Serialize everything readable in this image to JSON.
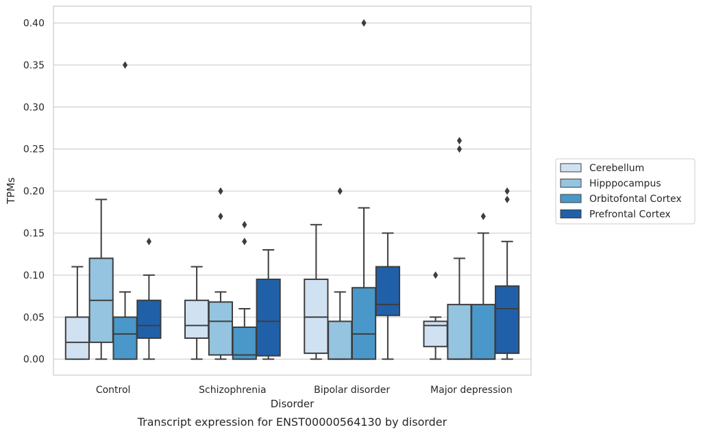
{
  "chart_data": {
    "type": "box",
    "title": "",
    "caption": "Transcript expression for ENST00000564130 by disorder",
    "xlabel": "Disorder",
    "ylabel": "TPMs",
    "ylim": [
      -0.019,
      0.42
    ],
    "yticks": [
      "0.00",
      "0.05",
      "0.10",
      "0.15",
      "0.20",
      "0.25",
      "0.30",
      "0.35",
      "0.40"
    ],
    "ytick_values": [
      0,
      0.05,
      0.1,
      0.15,
      0.2,
      0.25,
      0.3,
      0.35,
      0.4
    ],
    "grid": true,
    "legend_position": "right",
    "categories": [
      "Control",
      "Schizophrenia",
      "Bipolar disorder",
      "Major depression"
    ],
    "series": [
      {
        "name": "Cerebellum",
        "color": "#d0e1f2",
        "boxes": [
          {
            "whislo": 0,
            "q1": 0,
            "med": 0.02,
            "q3": 0.05,
            "whishi": 0.11,
            "fliers": []
          },
          {
            "whislo": 0,
            "q1": 0.025,
            "med": 0.04,
            "q3": 0.07,
            "whishi": 0.11,
            "fliers": []
          },
          {
            "whislo": 0,
            "q1": 0.007,
            "med": 0.05,
            "q3": 0.095,
            "whishi": 0.16,
            "fliers": []
          },
          {
            "whislo": 0,
            "q1": 0.015,
            "med": 0.04,
            "q3": 0.045,
            "whishi": 0.05,
            "fliers": [
              0.1
            ]
          }
        ]
      },
      {
        "name": "Hipppocampus",
        "color": "#94c4df",
        "boxes": [
          {
            "whislo": 0,
            "q1": 0.02,
            "med": 0.07,
            "q3": 0.12,
            "whishi": 0.19,
            "fliers": []
          },
          {
            "whislo": 0,
            "q1": 0.005,
            "med": 0.045,
            "q3": 0.068,
            "whishi": 0.08,
            "fliers": [
              0.17,
              0.2
            ]
          },
          {
            "whislo": 0,
            "q1": 0,
            "med": 0,
            "q3": 0.045,
            "whishi": 0.08,
            "fliers": [
              0.2
            ]
          },
          {
            "whislo": 0,
            "q1": 0,
            "med": 0,
            "q3": 0.065,
            "whishi": 0.12,
            "fliers": [
              0.25,
              0.26
            ]
          }
        ]
      },
      {
        "name": "Orbitofontal Cortex",
        "color": "#4a98c9",
        "boxes": [
          {
            "whislo": 0,
            "q1": 0,
            "med": 0.03,
            "q3": 0.05,
            "whishi": 0.08,
            "fliers": [
              0.35
            ]
          },
          {
            "whislo": 0,
            "q1": 0,
            "med": 0.005,
            "q3": 0.038,
            "whishi": 0.06,
            "fliers": [
              0.14,
              0.16
            ]
          },
          {
            "whislo": 0,
            "q1": 0,
            "med": 0.03,
            "q3": 0.085,
            "whishi": 0.18,
            "fliers": [
              0.4
            ]
          },
          {
            "whislo": 0,
            "q1": 0,
            "med": 0,
            "q3": 0.065,
            "whishi": 0.15,
            "fliers": [
              0.17
            ]
          }
        ]
      },
      {
        "name": "Prefrontal Cortex",
        "color": "#2060a8",
        "boxes": [
          {
            "whislo": 0,
            "q1": 0.025,
            "med": 0.04,
            "q3": 0.07,
            "whishi": 0.1,
            "fliers": [
              0.14
            ]
          },
          {
            "whislo": 0,
            "q1": 0.004,
            "med": 0.045,
            "q3": 0.095,
            "whishi": 0.13,
            "fliers": []
          },
          {
            "whislo": 0,
            "q1": 0.052,
            "med": 0.065,
            "q3": 0.11,
            "whishi": 0.15,
            "fliers": []
          },
          {
            "whislo": 0,
            "q1": 0.007,
            "med": 0.06,
            "q3": 0.087,
            "whishi": 0.14,
            "fliers": [
              0.19,
              0.2
            ]
          }
        ]
      }
    ]
  }
}
